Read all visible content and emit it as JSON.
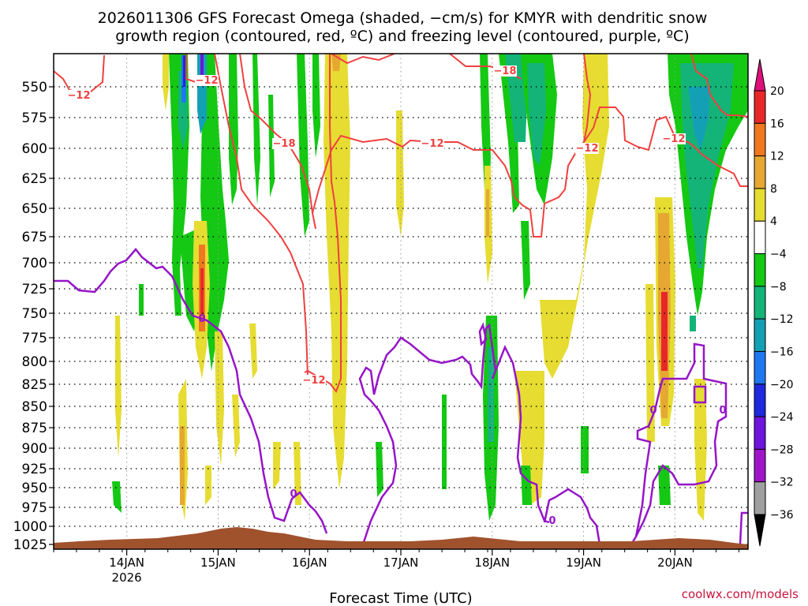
{
  "chart_data": {
    "type": "heatmap",
    "title_lines": [
      "2026011306 GFS Forecast Omega (shaded, −cm/s) for KMYR with dendritic snow",
      "growth region (contoured, red, ºC) and freezing level (contoured, purple, ºC)"
    ],
    "xlabel": "Forecast Time (UTC)",
    "credit": "coolwx.com/models",
    "x_range_days": [
      0,
      7.6
    ],
    "x_ticks": [
      {
        "day": 0.8,
        "label": "14JAN",
        "sublabel": "2026"
      },
      {
        "day": 1.8,
        "label": "15JAN",
        "sublabel": ""
      },
      {
        "day": 2.8,
        "label": "16JAN",
        "sublabel": ""
      },
      {
        "day": 3.8,
        "label": "17JAN",
        "sublabel": ""
      },
      {
        "day": 4.8,
        "label": "18JAN",
        "sublabel": ""
      },
      {
        "day": 5.8,
        "label": "19JAN",
        "sublabel": ""
      },
      {
        "day": 6.8,
        "label": "20JAN",
        "sublabel": ""
      }
    ],
    "y_ticks": [
      {
        "p": 550,
        "y": 110
      },
      {
        "p": 575,
        "y": 149
      },
      {
        "p": 600,
        "y": 188
      },
      {
        "p": 625,
        "y": 226
      },
      {
        "p": 650,
        "y": 264
      },
      {
        "p": 675,
        "y": 300
      },
      {
        "p": 700,
        "y": 333
      },
      {
        "p": 725,
        "y": 366
      },
      {
        "p": 750,
        "y": 397
      },
      {
        "p": 775,
        "y": 428
      },
      {
        "p": 800,
        "y": 458
      },
      {
        "p": 825,
        "y": 487
      },
      {
        "p": 850,
        "y": 515
      },
      {
        "p": 875,
        "y": 542
      },
      {
        "p": 900,
        "y": 568
      },
      {
        "p": 925,
        "y": 594
      },
      {
        "p": 950,
        "y": 618
      },
      {
        "p": 975,
        "y": 643
      },
      {
        "p": 1000,
        "y": 667
      },
      {
        "p": 1025,
        "y": 690
      }
    ],
    "colorbar": {
      "levels": [
        "20",
        "16",
        "12",
        "8",
        "4",
        "−4",
        "−8",
        "−12",
        "−16",
        "−20",
        "−24",
        "−28",
        "−32",
        "−36"
      ],
      "colors": [
        "#e0107a",
        "#e82828",
        "#f07820",
        "#e6a832",
        "#e6dc32",
        "#ffffff",
        "#14c814",
        "#14b478",
        "#14a0b4",
        "#1e78f0",
        "#1e28dc",
        "#6e14dc",
        "#a014c8",
        "#a0a0a0",
        "#000000"
      ]
    },
    "contour_labels": {
      "dgz": [
        "−12",
        "−12",
        "−18",
        "−12",
        "−18",
        "−12",
        "−12",
        "−12"
      ],
      "freezing": [
        "0",
        "0",
        "0",
        "0",
        "0"
      ]
    },
    "colors": {
      "dgz_contour": "#f04040",
      "freezing_contour": "#9614c8",
      "terrain": "#a0522d",
      "grid": "#000000"
    }
  }
}
